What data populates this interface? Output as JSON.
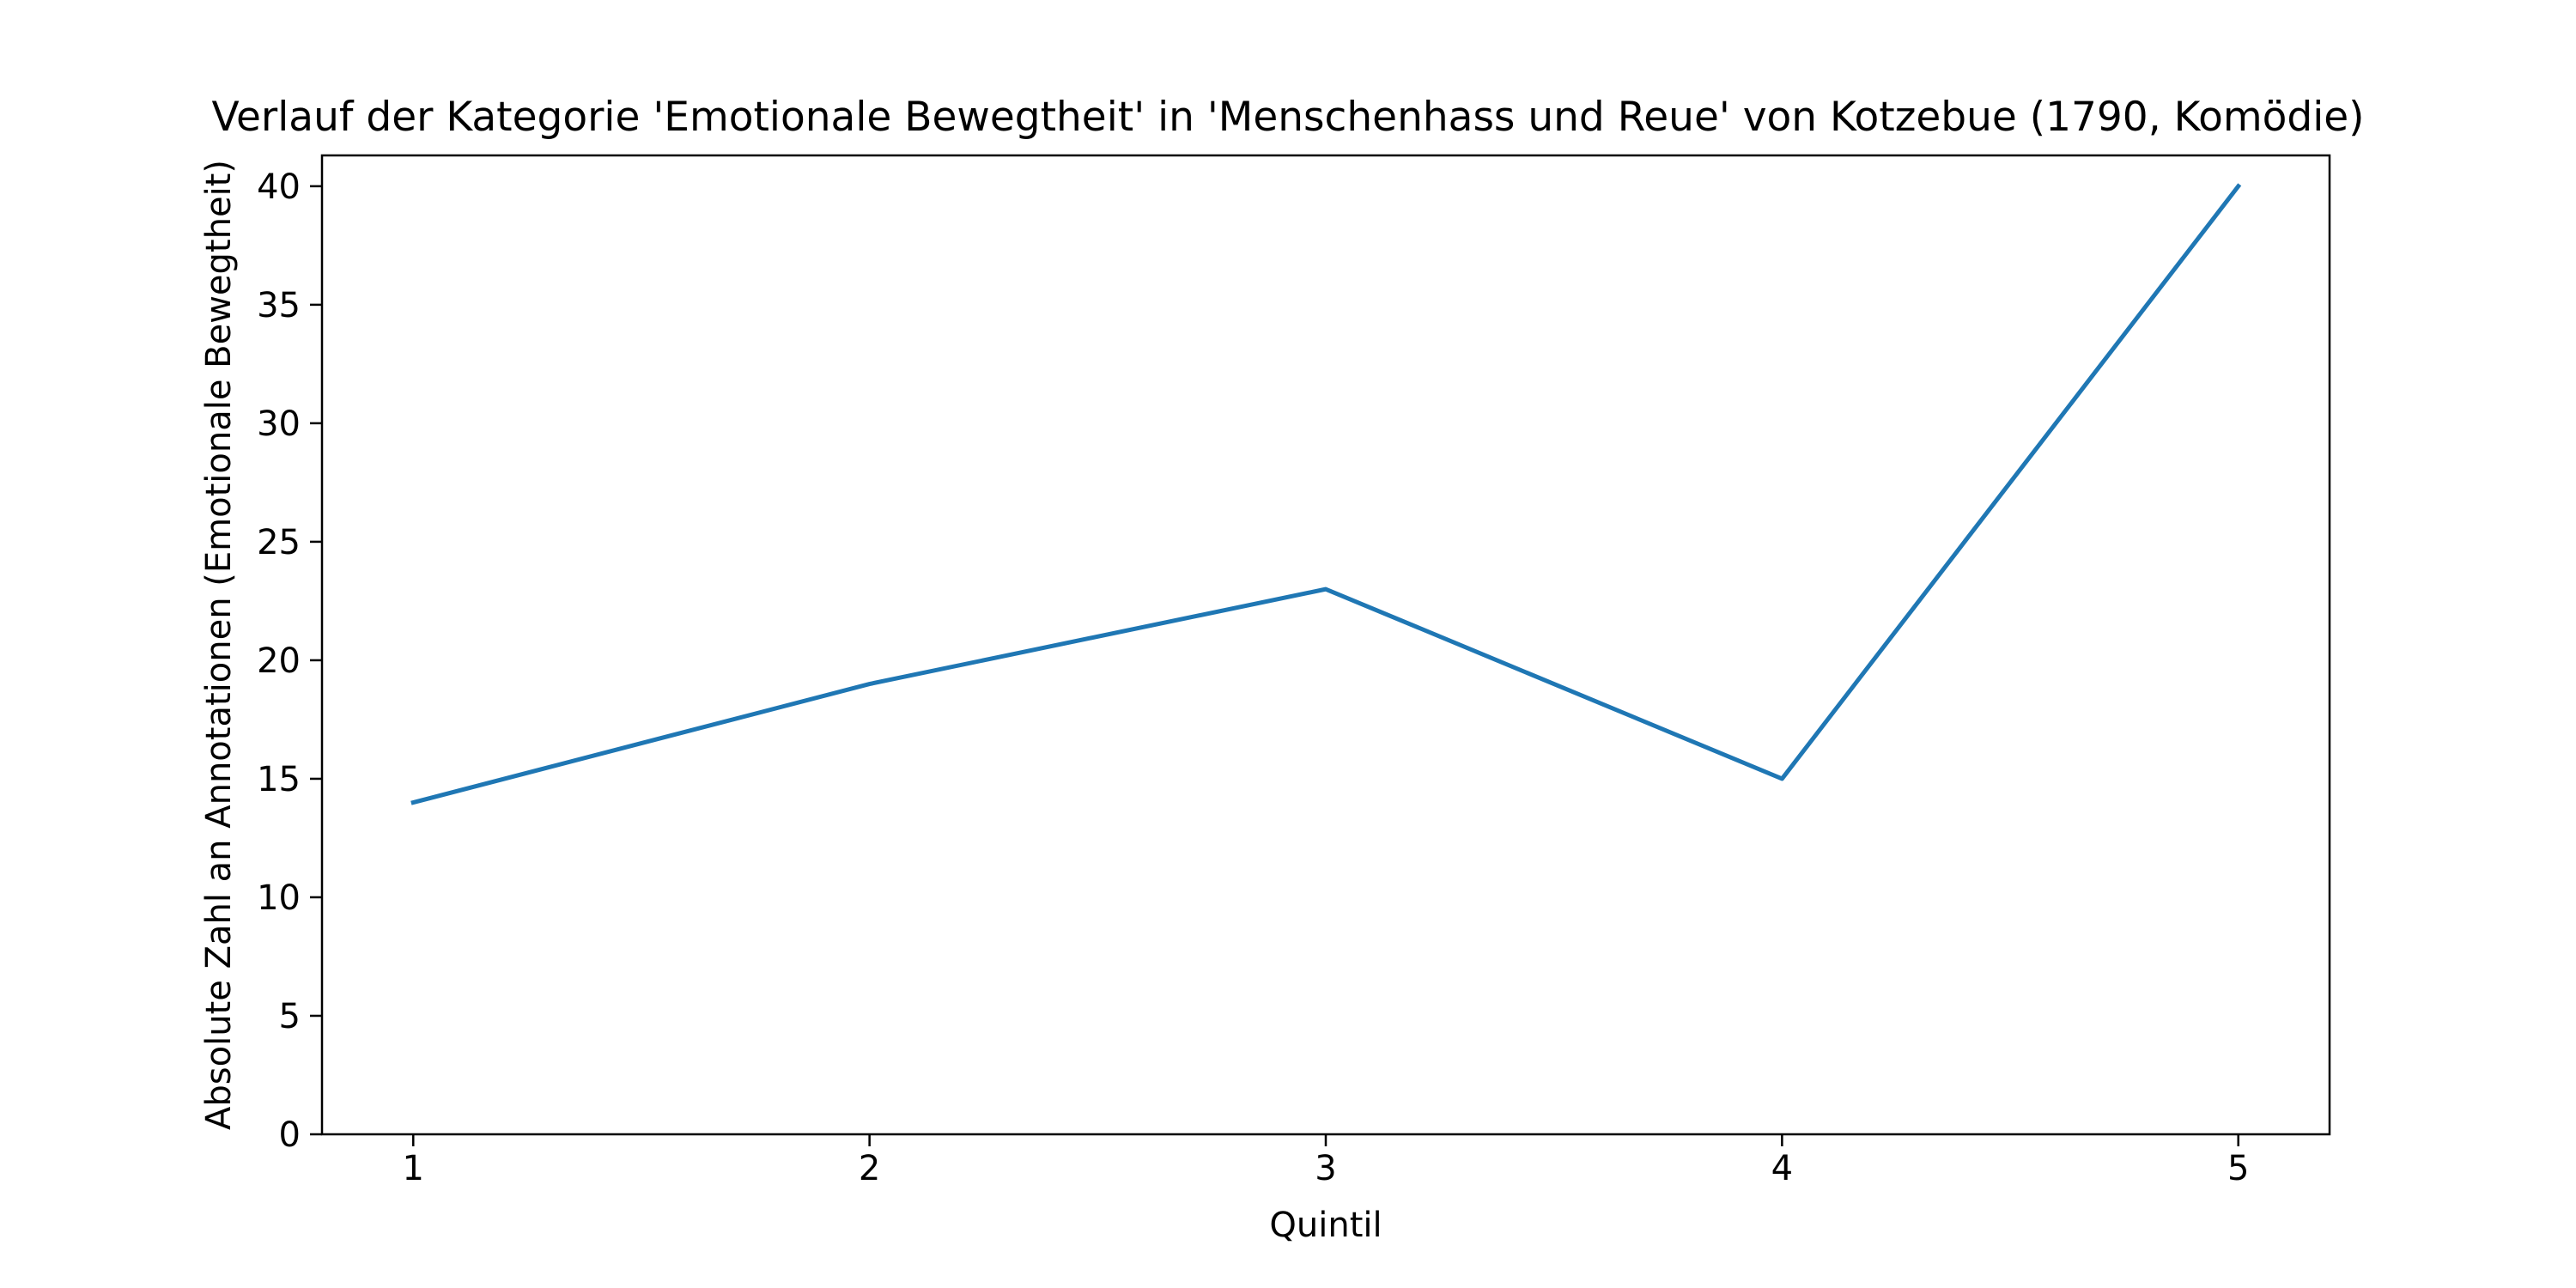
{
  "chart_data": {
    "type": "line",
    "title": "Verlauf der Kategorie 'Emotionale Bewegtheit' in 'Menschenhass und Reue' von Kotzebue (1790, Komödie)",
    "xlabel": "Quintil",
    "ylabel": "Absolute Zahl an Annotationen (Emotionale Bewegtheit)",
    "x": [
      1,
      2,
      3,
      4,
      5
    ],
    "series": [
      {
        "values": [
          14,
          19,
          23,
          15,
          40
        ],
        "color": "#1f77b4"
      }
    ],
    "xlim": [
      0.8,
      5.2
    ],
    "ylim": [
      0,
      41.3
    ],
    "x_ticks": [
      1,
      2,
      3,
      4,
      5
    ],
    "x_tick_labels": [
      "1",
      "2",
      "3",
      "4",
      "5"
    ],
    "y_ticks": [
      0,
      5,
      10,
      15,
      20,
      25,
      30,
      35,
      40
    ],
    "y_tick_labels": [
      "0",
      "5",
      "10",
      "15",
      "20",
      "25",
      "30",
      "35",
      "40"
    ],
    "grid": false,
    "legend": "none"
  }
}
